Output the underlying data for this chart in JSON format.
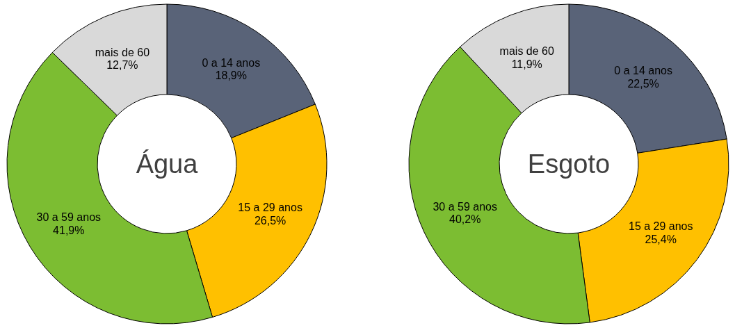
{
  "chart_data": [
    {
      "type": "donut",
      "title": "Água",
      "categories": [
        "0 a 14 anos",
        "15 a 29 anos",
        "30 a 59 anos",
        "mais de 60"
      ],
      "values": [
        18.9,
        26.5,
        41.9,
        12.7
      ],
      "value_labels": [
        "18,9%",
        "26,5%",
        "41,9%",
        "12,7%"
      ],
      "colors": [
        "#596378",
        "#ffc000",
        "#7cbd32",
        "#d9d9d9"
      ]
    },
    {
      "type": "donut",
      "title": "Esgoto",
      "categories": [
        "0 a 14 anos",
        "15 a 29 anos",
        "30 a 59 anos",
        "mais de 60"
      ],
      "values": [
        22.5,
        25.4,
        40.2,
        11.9
      ],
      "value_labels": [
        "22,5%",
        "25,4%",
        "40,2%",
        "11,9%"
      ],
      "colors": [
        "#596378",
        "#ffc000",
        "#7cbd32",
        "#d9d9d9"
      ]
    }
  ]
}
